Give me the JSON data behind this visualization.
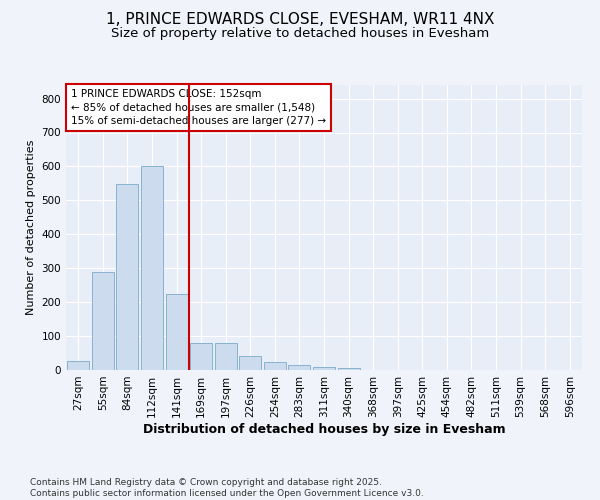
{
  "title_line1": "1, PRINCE EDWARDS CLOSE, EVESHAM, WR11 4NX",
  "title_line2": "Size of property relative to detached houses in Evesham",
  "xlabel": "Distribution of detached houses by size in Evesham",
  "ylabel": "Number of detached properties",
  "categories": [
    "27sqm",
    "55sqm",
    "84sqm",
    "112sqm",
    "141sqm",
    "169sqm",
    "197sqm",
    "226sqm",
    "254sqm",
    "283sqm",
    "311sqm",
    "340sqm",
    "368sqm",
    "397sqm",
    "425sqm",
    "454sqm",
    "482sqm",
    "511sqm",
    "539sqm",
    "568sqm",
    "596sqm"
  ],
  "values": [
    28,
    290,
    548,
    600,
    225,
    80,
    80,
    40,
    25,
    14,
    8,
    5,
    0,
    0,
    0,
    0,
    0,
    0,
    0,
    0,
    0
  ],
  "bar_color": "#ccdcee",
  "bar_edge_color": "#7aaac8",
  "vline_color": "#cc0000",
  "annotation_text": "1 PRINCE EDWARDS CLOSE: 152sqm\n← 85% of detached houses are smaller (1,548)\n15% of semi-detached houses are larger (277) →",
  "annotation_box_facecolor": "#ffffff",
  "annotation_box_edgecolor": "#cc0000",
  "ylim": [
    0,
    840
  ],
  "yticks": [
    0,
    100,
    200,
    300,
    400,
    500,
    600,
    700,
    800
  ],
  "bg_color": "#f0f4fa",
  "plot_bg_color": "#e8eef8",
  "grid_color": "#ffffff",
  "footer_text": "Contains HM Land Registry data © Crown copyright and database right 2025.\nContains public sector information licensed under the Open Government Licence v3.0.",
  "title_fontsize": 11,
  "subtitle_fontsize": 9.5,
  "xlabel_fontsize": 9,
  "ylabel_fontsize": 8,
  "tick_fontsize": 7.5,
  "annotation_fontsize": 7.5,
  "footer_fontsize": 6.5
}
